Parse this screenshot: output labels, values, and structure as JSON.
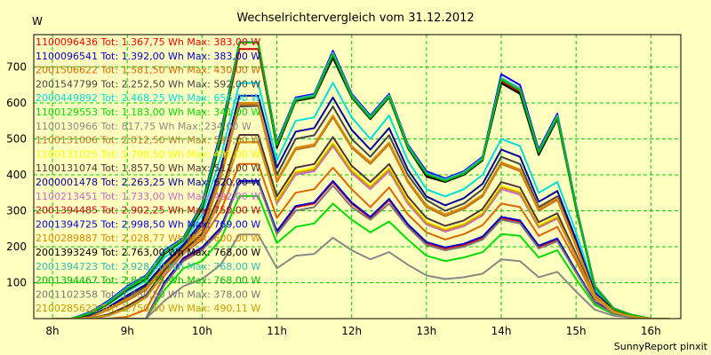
{
  "chart_data": {
    "type": "line",
    "title": "Wechselrichtervergleich vom 31.12.2012",
    "ylabel": "W",
    "xlabel": "",
    "footer": "SunnyReport pinxit",
    "x_range": [
      7.75,
      16.4
    ],
    "ylim": [
      0,
      790
    ],
    "x_ticks": [
      {
        "value": 8,
        "label": "8h"
      },
      {
        "value": 9,
        "label": "9h"
      },
      {
        "value": 10,
        "label": "10h"
      },
      {
        "value": 11,
        "label": "11h"
      },
      {
        "value": 12,
        "label": "12h"
      },
      {
        "value": 13,
        "label": "13h"
      },
      {
        "value": 14,
        "label": "14h"
      },
      {
        "value": 15,
        "label": "15h"
      },
      {
        "value": 16,
        "label": "16h"
      }
    ],
    "y_ticks": [
      100,
      200,
      300,
      400,
      500,
      600,
      700
    ],
    "grid": true,
    "legend_position": "top-left",
    "background": "#ffffc0",
    "grid_color": "#00cc00",
    "x": [
      8.0,
      8.25,
      8.5,
      8.75,
      9.0,
      9.25,
      9.5,
      9.75,
      10.0,
      10.25,
      10.5,
      10.75,
      11.0,
      11.25,
      11.5,
      11.75,
      12.0,
      12.25,
      12.5,
      12.75,
      13.0,
      13.25,
      13.5,
      13.75,
      14.0,
      14.25,
      14.5,
      14.75,
      15.0,
      15.25,
      15.5,
      15.75,
      16.0,
      16.25
    ],
    "series": [
      {
        "name": "1100096436 Tot: 1.367,75 Wh Max: 383,00 W",
        "color": "#ff0000",
        "values": [
          0,
          0,
          0,
          0,
          0,
          0,
          100,
          165,
          195,
          250,
          383,
          383,
          240,
          310,
          320,
          380,
          320,
          280,
          330,
          260,
          210,
          195,
          205,
          225,
          280,
          270,
          200,
          220,
          130,
          45,
          15,
          5,
          0,
          0
        ]
      },
      {
        "name": "1100096541 Tot: 1.392,00 Wh Max: 383,00 W",
        "color": "#0000cc",
        "values": [
          0,
          0,
          0,
          0,
          0,
          0,
          102,
          168,
          198,
          253,
          383,
          383,
          243,
          313,
          323,
          383,
          323,
          283,
          333,
          263,
          213,
          198,
          208,
          228,
          283,
          273,
          203,
          223,
          133,
          47,
          16,
          5,
          0,
          0
        ]
      },
      {
        "name": "2001506622 Tot: 1.581,50 Wh Max: 430,00 W",
        "color": "#dd6600",
        "values": [
          0,
          0,
          0,
          0,
          5,
          25,
          120,
          180,
          220,
          300,
          430,
          430,
          280,
          350,
          360,
          420,
          360,
          310,
          365,
          290,
          240,
          220,
          235,
          260,
          320,
          310,
          230,
          255,
          160,
          55,
          18,
          6,
          0,
          0
        ]
      },
      {
        "name": "2001547799 Tot: 2.252,50 Wh Max: 592,00 W",
        "color": "#444444",
        "values": [
          0,
          0,
          5,
          30,
          60,
          90,
          150,
          200,
          260,
          400,
          590,
          592,
          400,
          500,
          510,
          590,
          500,
          450,
          510,
          400,
          330,
          300,
          320,
          360,
          450,
          430,
          310,
          340,
          210,
          70,
          22,
          8,
          0,
          0
        ]
      },
      {
        "name": "2000449892 Tot: 2.468,25 Wh Max: 656,00 W",
        "color": "#00dddd",
        "values": [
          0,
          0,
          10,
          40,
          75,
          105,
          170,
          210,
          290,
          450,
          655,
          656,
          440,
          550,
          560,
          656,
          560,
          500,
          565,
          440,
          360,
          340,
          360,
          400,
          500,
          480,
          350,
          380,
          240,
          80,
          25,
          9,
          0,
          0
        ]
      },
      {
        "name": "1100129553 Tot: 1.183,00 Wh Max: 341,00 W",
        "color": "#00dd00",
        "values": [
          0,
          0,
          0,
          0,
          0,
          0,
          80,
          140,
          160,
          220,
          341,
          341,
          210,
          255,
          265,
          320,
          275,
          240,
          270,
          220,
          175,
          160,
          170,
          185,
          235,
          230,
          170,
          190,
          110,
          38,
          12,
          4,
          0,
          0
        ]
      },
      {
        "name": "1100130966 Tot: 817,75 Wh Max: 234,00 W",
        "color": "#888888",
        "values": [
          0,
          0,
          0,
          0,
          0,
          0,
          50,
          90,
          110,
          150,
          234,
          234,
          140,
          175,
          180,
          225,
          190,
          165,
          185,
          150,
          120,
          110,
          115,
          125,
          165,
          160,
          115,
          130,
          75,
          25,
          8,
          3,
          0,
          0
        ]
      },
      {
        "name": "1100131006 Tot: 2.012,50 Wh Max: 595,00 W",
        "color": "#bb7722",
        "values": [
          0,
          0,
          3,
          25,
          50,
          80,
          140,
          190,
          240,
          390,
          595,
          595,
          380,
          470,
          480,
          560,
          475,
          430,
          485,
          380,
          310,
          285,
          305,
          340,
          430,
          410,
          300,
          330,
          200,
          65,
          20,
          7,
          0,
          0
        ]
      },
      {
        "name": "1100131025 Tot: 1.798,50 Wh Max: 492,00 W",
        "color": "#ffff00",
        "values": [
          0,
          0,
          0,
          10,
          30,
          60,
          130,
          185,
          230,
          340,
          492,
          492,
          330,
          410,
          420,
          490,
          415,
          370,
          420,
          330,
          270,
          250,
          265,
          295,
          370,
          355,
          260,
          285,
          175,
          60,
          18,
          6,
          0,
          0
        ]
      },
      {
        "name": "1100131074 Tot: 1.857,50 Wh Max: 511,00 W",
        "color": "#553333",
        "values": [
          0,
          0,
          0,
          12,
          35,
          65,
          135,
          188,
          235,
          350,
          511,
          511,
          340,
          420,
          430,
          505,
          425,
          380,
          430,
          340,
          280,
          258,
          273,
          305,
          380,
          365,
          268,
          293,
          180,
          62,
          19,
          6,
          0,
          0
        ]
      },
      {
        "name": "2000001478 Tot: 2.263,25 Wh Max: 620,00 W",
        "color": "#000099",
        "values": [
          0,
          0,
          6,
          32,
          65,
          95,
          155,
          205,
          270,
          420,
          620,
          620,
          420,
          520,
          530,
          615,
          525,
          470,
          530,
          415,
          340,
          315,
          335,
          375,
          470,
          450,
          325,
          355,
          220,
          73,
          23,
          8,
          0,
          0
        ]
      },
      {
        "name": "1100213451 Tot: 1.733,00 Wh Max: 492,00 W",
        "color": "#cc66cc",
        "values": [
          0,
          0,
          0,
          8,
          28,
          58,
          125,
          180,
          225,
          330,
          490,
          492,
          320,
          400,
          410,
          480,
          405,
          360,
          410,
          320,
          262,
          242,
          257,
          287,
          360,
          345,
          253,
          278,
          170,
          58,
          17,
          6,
          0,
          0
        ]
      },
      {
        "name": "2001394485 Tot: 2.902,25 Wh Max: 750,00 W",
        "color": "#cc0000",
        "values": [
          0,
          0,
          15,
          45,
          85,
          115,
          185,
          220,
          310,
          500,
          750,
          750,
          480,
          610,
          620,
          730,
          620,
          560,
          620,
          480,
          400,
          385,
          405,
          445,
          660,
          630,
          460,
          560,
          310,
          90,
          28,
          10,
          0,
          0
        ]
      },
      {
        "name": "2001394725 Tot: 2.998,50 Wh Max: 769,00 W",
        "color": "#0000ee",
        "values": [
          0,
          0,
          18,
          50,
          90,
          120,
          190,
          225,
          320,
          520,
          769,
          769,
          490,
          615,
          625,
          745,
          625,
          565,
          625,
          485,
          410,
          390,
          410,
          450,
          680,
          650,
          470,
          570,
          315,
          92,
          29,
          10,
          0,
          0
        ]
      },
      {
        "name": "2100289887 Tot: 2.028,77 Wh Max: 600,00 W",
        "color": "#dd8800",
        "values": [
          0,
          0,
          4,
          28,
          55,
          85,
          145,
          195,
          250,
          395,
          600,
          600,
          385,
          475,
          485,
          565,
          480,
          435,
          490,
          385,
          315,
          290,
          310,
          345,
          435,
          415,
          305,
          335,
          205,
          67,
          21,
          7,
          0,
          0
        ]
      },
      {
        "name": "2001393249 Tot: 2.763,00 Wh Max: 768,00 W",
        "color": "#000000",
        "values": [
          0,
          0,
          12,
          42,
          80,
          110,
          180,
          218,
          305,
          495,
          768,
          768,
          475,
          605,
          615,
          725,
          615,
          555,
          615,
          475,
          395,
          380,
          400,
          440,
          655,
          625,
          455,
          555,
          305,
          88,
          27,
          9,
          0,
          0
        ]
      },
      {
        "name": "2001394723 Tot: 2.928,50 Wh Max: 768,00 W",
        "color": "#33bbbb",
        "values": [
          0,
          0,
          16,
          47,
          87,
          117,
          187,
          222,
          315,
          510,
          768,
          768,
          485,
          612,
          622,
          740,
          622,
          562,
          622,
          482,
          405,
          387,
          407,
          447,
          670,
          640,
          465,
          565,
          312,
          91,
          28,
          10,
          0,
          0
        ]
      },
      {
        "name": "2001394467 Tot: 2.848,75 Wh Max: 768,00 W",
        "color": "#00bb00",
        "values": [
          0,
          0,
          14,
          44,
          83,
          113,
          183,
          220,
          312,
          505,
          768,
          768,
          482,
          608,
          618,
          735,
          618,
          558,
          618,
          478,
          402,
          383,
          403,
          443,
          665,
          635,
          462,
          560,
          308,
          89,
          28,
          10,
          0,
          0
        ]
      },
      {
        "name": "2001102358 Tot: 1.450,50 Wh Max: 378,00 W",
        "color": "#777777",
        "values": [
          0,
          0,
          0,
          0,
          0,
          0,
          95,
          160,
          190,
          245,
          378,
          378,
          235,
          300,
          310,
          370,
          310,
          275,
          320,
          255,
          205,
          190,
          200,
          220,
          275,
          265,
          195,
          215,
          128,
          44,
          14,
          5,
          0,
          0
        ]
      },
      {
        "name": "2100285622 Tot: 1.750,50 Wh Max: 490,11 W",
        "color": "#cc9900",
        "values": [
          0,
          0,
          0,
          9,
          29,
          59,
          128,
          182,
          228,
          335,
          490,
          490,
          325,
          405,
          415,
          485,
          410,
          365,
          415,
          325,
          266,
          246,
          261,
          291,
          365,
          350,
          256,
          281,
          172,
          59,
          18,
          6,
          0,
          0
        ]
      }
    ]
  }
}
